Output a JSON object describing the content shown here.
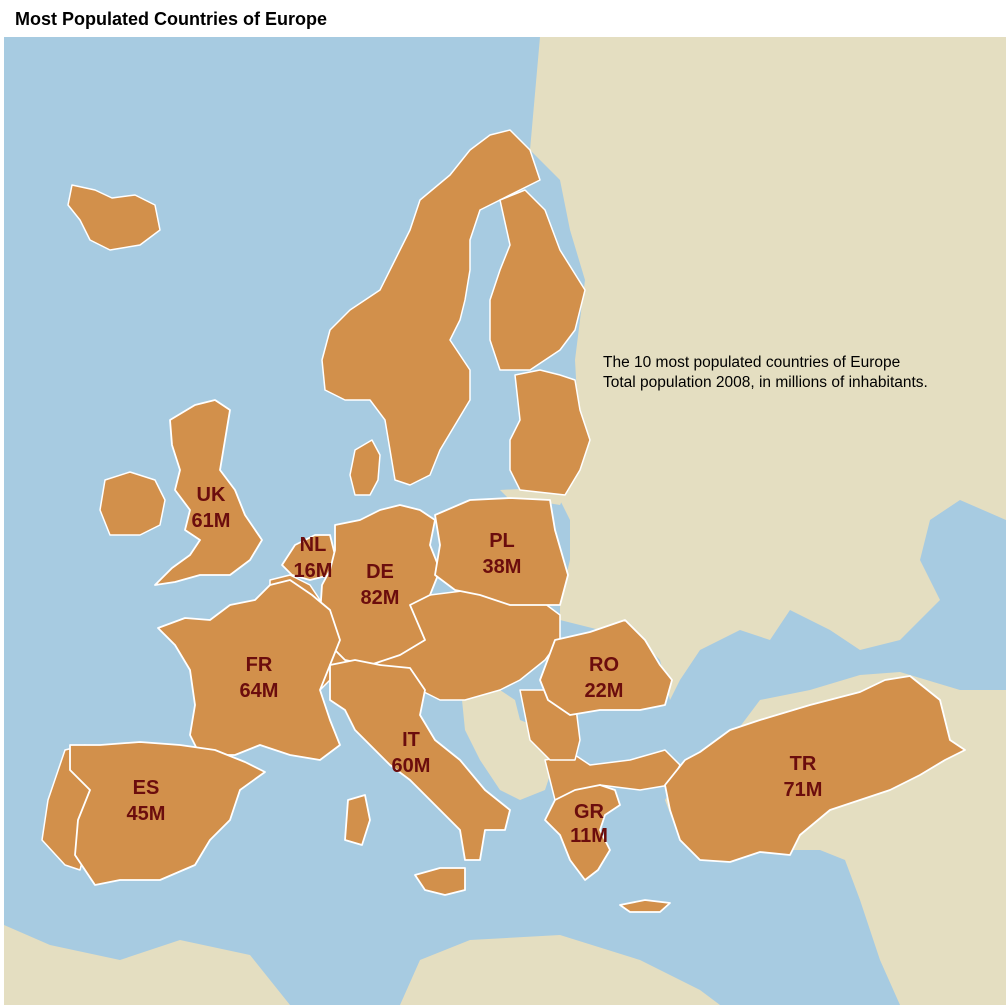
{
  "title": "Most Populated Countries of Europe",
  "description": [
    "The 10 most populated countries of Europe",
    "Total population 2008, in millions of inhabitants."
  ],
  "colors": {
    "sea": "#a7cbe1",
    "land_other": "#e4dec1",
    "land_highlight": "#d2904b",
    "border": "#ffffff",
    "label": "#6b0d0d",
    "text": "#000000"
  },
  "countries": [
    {
      "code": "UK",
      "value": "61M"
    },
    {
      "code": "NL",
      "value": "16M"
    },
    {
      "code": "DE",
      "value": "82M"
    },
    {
      "code": "PL",
      "value": "38M"
    },
    {
      "code": "FR",
      "value": "64M"
    },
    {
      "code": "RO",
      "value": "22M"
    },
    {
      "code": "IT",
      "value": "60M"
    },
    {
      "code": "TR",
      "value": "71M"
    },
    {
      "code": "ES",
      "value": "45M"
    },
    {
      "code": "GR",
      "value": "11M"
    }
  ]
}
